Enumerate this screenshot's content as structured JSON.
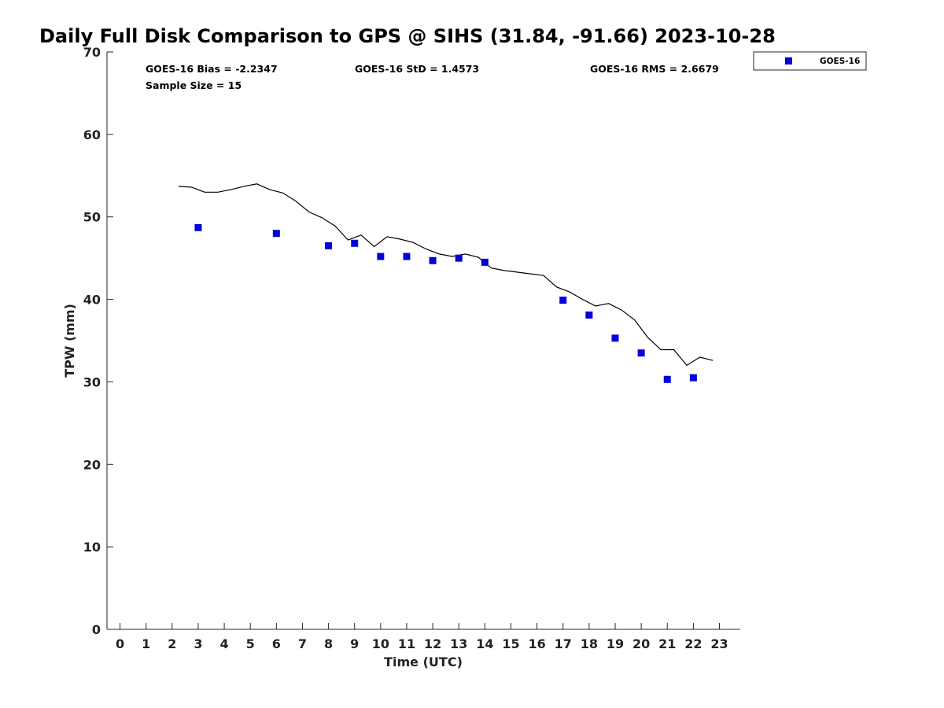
{
  "chart_data": {
    "type": "scatter",
    "title": "Daily Full Disk Comparison to GPS @ SIHS (31.84, -91.66) 2023-10-28",
    "xlabel": "Time (UTC)",
    "ylabel": "TPW (mm)",
    "xlim": [
      -0.5,
      23.8
    ],
    "ylim": [
      0,
      70
    ],
    "x_ticks": [
      0,
      1,
      2,
      3,
      4,
      5,
      6,
      7,
      8,
      9,
      10,
      11,
      12,
      13,
      14,
      15,
      16,
      17,
      18,
      19,
      20,
      21,
      22,
      23
    ],
    "y_ticks": [
      0,
      10,
      20,
      30,
      40,
      50,
      60,
      70
    ],
    "grid": false,
    "legend_position": "outside top-right",
    "series": [
      {
        "name": "GOES-16",
        "kind": "scatter",
        "marker": "square",
        "color": "#0000dd",
        "points": [
          [
            3,
            48.7
          ],
          [
            6,
            48.0
          ],
          [
            8,
            46.5
          ],
          [
            9,
            46.8
          ],
          [
            10,
            45.2
          ],
          [
            11,
            45.2
          ],
          [
            12,
            44.7
          ],
          [
            13,
            45.0
          ],
          [
            14,
            44.5
          ],
          [
            17,
            39.9
          ],
          [
            18,
            38.1
          ],
          [
            19,
            35.3
          ],
          [
            20,
            33.5
          ],
          [
            21,
            30.3
          ],
          [
            22,
            30.5
          ]
        ]
      },
      {
        "kind": "line",
        "color": "#000000",
        "points": [
          [
            2.25,
            53.7
          ],
          [
            2.75,
            53.6
          ],
          [
            3.25,
            53.0
          ],
          [
            3.75,
            53.0
          ],
          [
            4.25,
            53.3
          ],
          [
            4.75,
            53.7
          ],
          [
            5.25,
            54.0
          ],
          [
            5.75,
            53.3
          ],
          [
            6.25,
            52.9
          ],
          [
            6.75,
            51.9
          ],
          [
            7.25,
            50.6
          ],
          [
            7.75,
            49.9
          ],
          [
            8.25,
            48.9
          ],
          [
            8.75,
            47.2
          ],
          [
            9.25,
            47.8
          ],
          [
            9.75,
            46.4
          ],
          [
            10.25,
            47.6
          ],
          [
            10.75,
            47.3
          ],
          [
            11.25,
            46.9
          ],
          [
            11.75,
            46.1
          ],
          [
            12.25,
            45.5
          ],
          [
            12.75,
            45.2
          ],
          [
            13.25,
            45.5
          ],
          [
            13.75,
            45.1
          ],
          [
            14.25,
            43.8
          ],
          [
            14.75,
            43.5
          ],
          [
            15.25,
            43.3
          ],
          [
            15.75,
            43.1
          ],
          [
            16.25,
            42.9
          ],
          [
            16.75,
            41.5
          ],
          [
            17.25,
            40.9
          ],
          [
            17.75,
            40.0
          ],
          [
            18.25,
            39.2
          ],
          [
            18.75,
            39.5
          ],
          [
            19.25,
            38.7
          ],
          [
            19.75,
            37.5
          ],
          [
            20.25,
            35.4
          ],
          [
            20.75,
            33.9
          ],
          [
            21.25,
            33.9
          ],
          [
            21.75,
            32.0
          ],
          [
            22.25,
            33.0
          ],
          [
            22.75,
            32.6
          ]
        ]
      }
    ],
    "stats": {
      "bias": "GOES-16 Bias = -2.2347",
      "std": "GOES-16 StD = 1.4573",
      "rms": "GOES-16 RMS = 2.6679",
      "sample_size": "Sample Size = 15"
    },
    "legend_label": "GOES-16"
  }
}
